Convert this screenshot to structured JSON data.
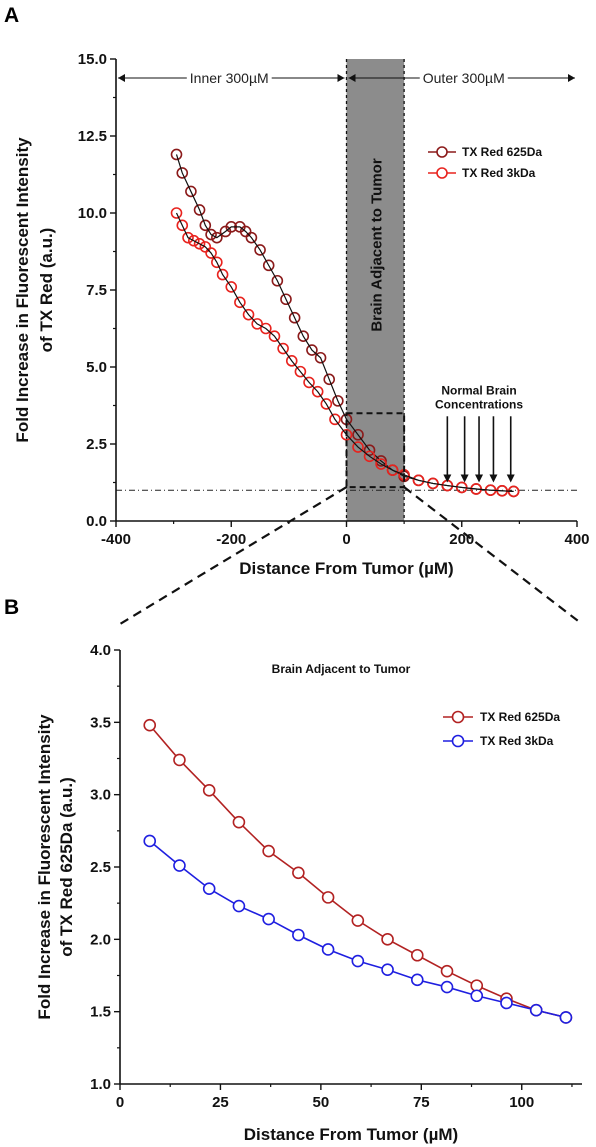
{
  "panels": {
    "a": "A",
    "b": "B"
  },
  "chart_data": [
    {
      "type": "scatter",
      "panel": "A",
      "xlabel": "Distance From Tumor (µM)",
      "ylabel_lines": [
        "Fold Increase in Fluorescent Intensity",
        "of TX Red (a.u.)"
      ],
      "xlim": [
        -400,
        400
      ],
      "ylim": [
        0,
        15
      ],
      "xticks": [
        "-400",
        "-200",
        "0",
        "200",
        "400"
      ],
      "xtick_values": [
        -400,
        -200,
        0,
        200,
        400
      ],
      "yticks": [
        "0.0",
        "2.5",
        "5.0",
        "7.5",
        "10.0",
        "12.5",
        "15.0"
      ],
      "ytick_values": [
        0,
        2.5,
        5,
        7.5,
        10,
        12.5,
        15
      ],
      "baseline_y": 1.0,
      "shaded_region": {
        "x": [
          0,
          100
        ],
        "label": "Brain Adjacent to Tumor"
      },
      "region_labels": {
        "inner": "Inner 300µM",
        "outer": "Outer 300µM"
      },
      "annotation": {
        "lines": [
          "Normal Brain",
          "Concentrations"
        ],
        "arrow_x": [
          175,
          205,
          230,
          255,
          285
        ],
        "arrow_y_top": 3.4,
        "arrow_y_bottom": 1.25
      },
      "zoom_box": {
        "x": [
          0,
          100
        ],
        "y": [
          1.1,
          3.5
        ]
      },
      "legend": {
        "position": "top-right",
        "items": [
          "TX Red 625Da",
          "TX Red 3kDa"
        ]
      },
      "series": [
        {
          "name": "TX Red 625Da",
          "color": "#8b1a1a",
          "x": [
            -295,
            -285,
            -270,
            -255,
            -245,
            -235,
            -225,
            -210,
            -200,
            -185,
            -175,
            -165,
            -150,
            -135,
            -120,
            -105,
            -90,
            -75,
            -60,
            -45,
            -30,
            -15,
            0,
            20,
            40,
            60,
            80,
            100,
            125,
            150,
            175,
            200,
            225,
            250,
            270,
            290
          ],
          "y": [
            11.9,
            11.3,
            10.7,
            10.1,
            9.6,
            9.3,
            9.2,
            9.4,
            9.55,
            9.55,
            9.4,
            9.2,
            8.8,
            8.3,
            7.8,
            7.2,
            6.6,
            6.0,
            5.55,
            5.3,
            4.6,
            3.9,
            3.3,
            2.8,
            2.3,
            1.95,
            1.65,
            1.45,
            1.32,
            1.22,
            1.15,
            1.09,
            1.04,
            1.0,
            0.98,
            0.96
          ]
        },
        {
          "name": "TX Red 3kDa",
          "color": "#e8231e",
          "x": [
            -295,
            -285,
            -275,
            -265,
            -255,
            -245,
            -235,
            -225,
            -215,
            -200,
            -185,
            -170,
            -155,
            -140,
            -125,
            -110,
            -95,
            -80,
            -65,
            -50,
            -35,
            -20,
            0,
            20,
            40,
            60,
            80,
            100,
            125,
            150,
            175,
            200,
            225,
            250,
            270,
            290
          ],
          "y": [
            10.0,
            9.6,
            9.2,
            9.1,
            9.0,
            8.9,
            8.7,
            8.4,
            8.0,
            7.6,
            7.1,
            6.7,
            6.4,
            6.25,
            6.0,
            5.6,
            5.2,
            4.85,
            4.5,
            4.2,
            3.8,
            3.3,
            2.8,
            2.4,
            2.1,
            1.85,
            1.65,
            1.5,
            1.32,
            1.22,
            1.15,
            1.09,
            1.04,
            1.0,
            0.98,
            0.96
          ]
        }
      ]
    },
    {
      "type": "line",
      "panel": "B",
      "title": "Brain Adjacent to Tumor",
      "xlabel": "Distance From Tumor (µM)",
      "ylabel_lines": [
        "Fold Increase in Fluorescent Intensity",
        "of TX Red 625Da (a.u.)"
      ],
      "xlim": [
        0,
        115
      ],
      "ylim": [
        1.0,
        4.0
      ],
      "xticks": [
        "0",
        "25",
        "50",
        "75",
        "100"
      ],
      "xtick_values": [
        0,
        25,
        50,
        75,
        100
      ],
      "yticks": [
        "1.0",
        "1.5",
        "2.0",
        "2.5",
        "3.0",
        "3.5",
        "4.0"
      ],
      "ytick_values": [
        1.0,
        1.5,
        2.0,
        2.5,
        3.0,
        3.5,
        4.0
      ],
      "legend": {
        "position": "top-right",
        "items": [
          "TX Red 625Da",
          "TX Red 3kDa"
        ]
      },
      "series": [
        {
          "name": "TX Red 625Da",
          "color": "#b22222",
          "x": [
            7.4,
            14.8,
            22.2,
            29.6,
            37.0,
            44.4,
            51.8,
            59.2,
            66.6,
            74.0,
            81.4,
            88.8,
            96.2,
            103.6,
            111.0
          ],
          "y": [
            3.48,
            3.24,
            3.03,
            2.81,
            2.61,
            2.46,
            2.29,
            2.13,
            2.0,
            1.89,
            1.78,
            1.68,
            1.59,
            1.51,
            1.46
          ]
        },
        {
          "name": "TX Red 3kDa",
          "color": "#1f1fe0",
          "x": [
            7.4,
            14.8,
            22.2,
            29.6,
            37.0,
            44.4,
            51.8,
            59.2,
            66.6,
            74.0,
            81.4,
            88.8,
            96.2,
            103.6,
            111.0
          ],
          "y": [
            2.68,
            2.51,
            2.35,
            2.23,
            2.14,
            2.03,
            1.93,
            1.85,
            1.79,
            1.72,
            1.67,
            1.61,
            1.56,
            1.51,
            1.46
          ]
        }
      ]
    }
  ]
}
